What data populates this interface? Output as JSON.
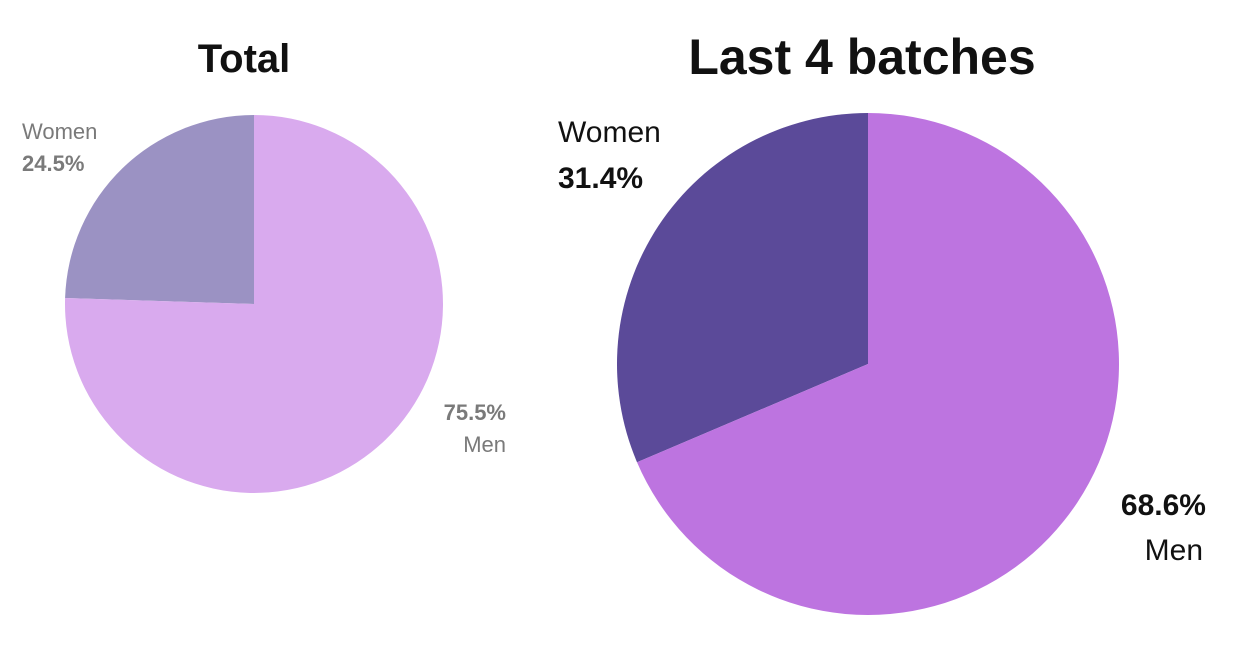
{
  "chart_data": [
    {
      "type": "pie",
      "title": "Total",
      "slices": [
        {
          "label": "Women",
          "value": 24.5,
          "value_label": "24.5%",
          "color": "#9b92c3"
        },
        {
          "label": "Men",
          "value": 75.5,
          "value_label": "75.5%",
          "color": "#d9aaee"
        }
      ],
      "start_angle_deg": 0,
      "direction": "counterclockwise-from-top-for-women",
      "legend": "none"
    },
    {
      "type": "pie",
      "title": "Last 4 batches",
      "slices": [
        {
          "label": "Women",
          "value": 31.4,
          "value_label": "31.4%",
          "color": "#5b4a99"
        },
        {
          "label": "Men",
          "value": 68.6,
          "value_label": "68.6%",
          "color": "#bd74e0"
        }
      ],
      "start_angle_deg": 0,
      "direction": "counterclockwise-from-top-for-women",
      "legend": "none"
    }
  ]
}
